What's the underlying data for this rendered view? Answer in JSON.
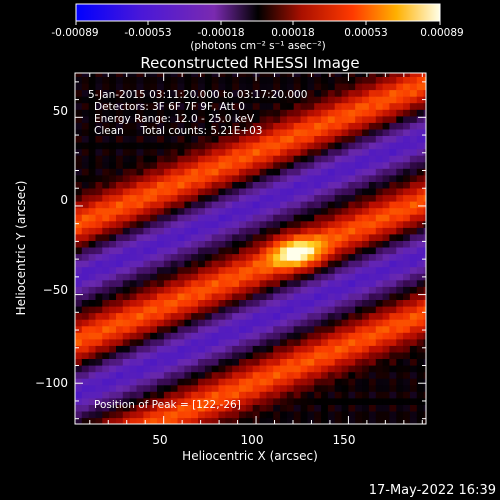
{
  "colorbar": {
    "ticks": [
      "-0.00089",
      "-0.00053",
      "-0.00018",
      "0.00018",
      "0.00053",
      "0.00089"
    ],
    "units": "(photons cm⁻² s⁻¹ asec⁻²)"
  },
  "chart_data": {
    "type": "heatmap",
    "title": "Reconstructed RHESSI Image",
    "xlabel": "Heliocentric X (arcsec)",
    "ylabel": "Heliocentric Y (arcsec)",
    "xlim": [
      2,
      192
    ],
    "ylim": [
      -123,
      75
    ],
    "xticks": [
      50,
      100,
      150
    ],
    "yticks": [
      50,
      0,
      -50,
      -100
    ],
    "zlim": [
      -0.00089,
      0.00089
    ],
    "colormap": "rhessi-blue-purple-red-yellow-white",
    "annotations": [
      "5-Jan-2015 03:11:20.000 to 03:17:20.000",
      "Detectors: 3F 6F 7F 9F, Att 0",
      "Energy Range: 12.0 - 25.0 keV",
      "Clean     Total counts: 5.21E+03"
    ],
    "peak_label": "Position of Peak = [122,-26]",
    "peak": [
      122,
      -26
    ],
    "bands": [
      {
        "kind": "positive",
        "offset": -64
      },
      {
        "kind": "negative",
        "offset": -30
      },
      {
        "kind": "positive",
        "offset": 0
      },
      {
        "kind": "negative",
        "offset": 36
      },
      {
        "kind": "positive",
        "offset": 66
      }
    ]
  },
  "footer": {
    "timestamp": "17-May-2022 16:39"
  }
}
